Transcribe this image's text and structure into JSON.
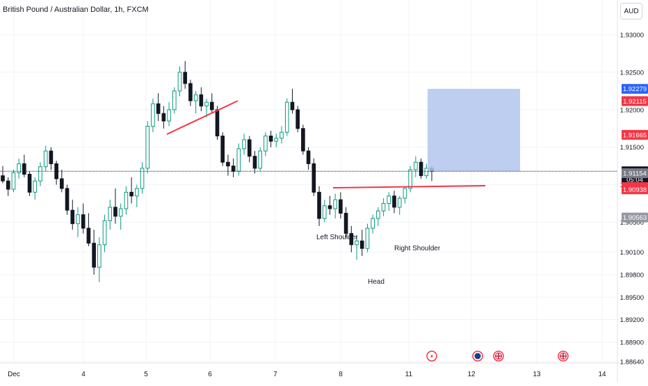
{
  "symbol": {
    "title": "British Pound / Australian Dollar, 1h, FXCM",
    "currency": "AUD"
  },
  "price_axis": {
    "ticks": [
      "1.93000",
      "1.92500",
      "1.92000",
      "1.91500",
      "1.91000",
      "1.90500",
      "1.90100",
      "1.89800",
      "1.89500",
      "1.89200",
      "1.88900",
      "1.88640"
    ],
    "tick_values": [
      1.93,
      1.925,
      1.92,
      1.915,
      1.91,
      1.905,
      1.901,
      1.898,
      1.895,
      1.892,
      1.889,
      1.8864
    ]
  },
  "price_labels": [
    {
      "text": "1.92279",
      "value": 1.92279,
      "color": "#2962ff"
    },
    {
      "text": "1.92115",
      "value": 1.92115,
      "color": "#f23645"
    },
    {
      "text": "1.91665",
      "value": 1.91665,
      "color": "#f23645"
    },
    {
      "text": "1.91180",
      "value": 1.9118,
      "color": "#131722",
      "sub": "05:04"
    },
    {
      "text": "1.91154",
      "value": 1.91154,
      "color": "#787b86"
    },
    {
      "text": "1.90969",
      "value": 1.90969,
      "color": "#f23645"
    },
    {
      "text": "1.90938",
      "value": 1.90938,
      "color": "#f23645"
    },
    {
      "text": "1.90563",
      "value": 1.90563,
      "color": "#9598a1"
    }
  ],
  "time_axis": {
    "labels": [
      "Dec",
      "4",
      "5",
      "6",
      "7",
      "8",
      "11",
      "12",
      "13",
      "14"
    ]
  },
  "annotations": {
    "left_shoulder": "Left Shoulder",
    "head": "Head",
    "right_shoulder": "Right Shoulder"
  },
  "event_icons": [
    "flash-event-icon",
    "australia-flag-event-icon",
    "uk-flag-event-icon",
    "uk-flag-event-icon"
  ],
  "colors": {
    "up": "#089981",
    "down": "#131722",
    "trendline": "#f23645",
    "target_zone": "#b2c5ee",
    "stop_zone": "#d1d4dc",
    "last_price_line": "#131722"
  },
  "chart_data": {
    "type": "candlestick",
    "title": "British Pound / Australian Dollar, 1h, FXCM",
    "ylim": [
      1.8864,
      1.933
    ],
    "xcategories": [
      "Dec",
      "4",
      "5",
      "6",
      "7",
      "8",
      "11",
      "12",
      "13",
      "14"
    ],
    "candles": [
      [
        1.9112,
        1.9125,
        1.9102,
        1.9105
      ],
      [
        1.9105,
        1.911,
        1.9085,
        1.9094
      ],
      [
        1.9094,
        1.912,
        1.909,
        1.9116
      ],
      [
        1.9116,
        1.9135,
        1.9108,
        1.9128
      ],
      [
        1.9128,
        1.914,
        1.911,
        1.9114
      ],
      [
        1.9114,
        1.9118,
        1.9085,
        1.909
      ],
      [
        1.909,
        1.911,
        1.908,
        1.9105
      ],
      [
        1.9105,
        1.913,
        1.9098,
        1.9124
      ],
      [
        1.9124,
        1.9152,
        1.9118,
        1.9145
      ],
      [
        1.9145,
        1.915,
        1.912,
        1.9128
      ],
      [
        1.9128,
        1.9132,
        1.91,
        1.9108
      ],
      [
        1.9108,
        1.912,
        1.909,
        1.9095
      ],
      [
        1.9095,
        1.91,
        1.906,
        1.9066
      ],
      [
        1.9066,
        1.908,
        1.904,
        1.9048
      ],
      [
        1.9048,
        1.907,
        1.903,
        1.906
      ],
      [
        1.906,
        1.9075,
        1.9035,
        1.9042
      ],
      [
        1.9042,
        1.9062,
        1.9018,
        1.9022
      ],
      [
        1.9022,
        1.904,
        1.898,
        1.899
      ],
      [
        1.899,
        1.903,
        1.897,
        1.902
      ],
      [
        1.902,
        1.906,
        1.901,
        1.9052
      ],
      [
        1.9052,
        1.908,
        1.904,
        1.907
      ],
      [
        1.907,
        1.9095,
        1.9048,
        1.9058
      ],
      [
        1.9058,
        1.9075,
        1.904,
        1.9068
      ],
      [
        1.9068,
        1.9098,
        1.906,
        1.909
      ],
      [
        1.909,
        1.911,
        1.9075,
        1.9085
      ],
      [
        1.9085,
        1.91,
        1.907,
        1.9095
      ],
      [
        1.9095,
        1.913,
        1.9088,
        1.9122
      ],
      [
        1.9122,
        1.9185,
        1.9115,
        1.9178
      ],
      [
        1.9178,
        1.9215,
        1.917,
        1.9208
      ],
      [
        1.9208,
        1.9222,
        1.9185,
        1.9195
      ],
      [
        1.9195,
        1.9205,
        1.9175,
        1.9185
      ],
      [
        1.9185,
        1.921,
        1.9178,
        1.92
      ],
      [
        1.92,
        1.923,
        1.9195,
        1.9225
      ],
      [
        1.9225,
        1.9258,
        1.9218,
        1.925
      ],
      [
        1.925,
        1.9265,
        1.9228,
        1.9235
      ],
      [
        1.9235,
        1.924,
        1.9205,
        1.9212
      ],
      [
        1.9212,
        1.9225,
        1.9195,
        1.922
      ],
      [
        1.922,
        1.923,
        1.9198,
        1.9205
      ],
      [
        1.9205,
        1.9215,
        1.919,
        1.921
      ],
      [
        1.921,
        1.9222,
        1.9195,
        1.92
      ],
      [
        1.92,
        1.9205,
        1.916,
        1.9165
      ],
      [
        1.9165,
        1.917,
        1.9125,
        1.913
      ],
      [
        1.913,
        1.914,
        1.9112,
        1.9125
      ],
      [
        1.9125,
        1.9135,
        1.911,
        1.9118
      ],
      [
        1.9118,
        1.9155,
        1.9112,
        1.9148
      ],
      [
        1.9148,
        1.9168,
        1.914,
        1.916
      ],
      [
        1.916,
        1.9165,
        1.913,
        1.9138
      ],
      [
        1.9138,
        1.9145,
        1.9115,
        1.9122
      ],
      [
        1.9122,
        1.915,
        1.9118,
        1.9145
      ],
      [
        1.9145,
        1.917,
        1.9138,
        1.9165
      ],
      [
        1.9165,
        1.9172,
        1.915,
        1.9158
      ],
      [
        1.9158,
        1.9168,
        1.915,
        1.9162
      ],
      [
        1.9162,
        1.9178,
        1.9155,
        1.917
      ],
      [
        1.917,
        1.9215,
        1.9165,
        1.921
      ],
      [
        1.921,
        1.9228,
        1.9195,
        1.92
      ],
      [
        1.92,
        1.9205,
        1.917,
        1.9175
      ],
      [
        1.9175,
        1.918,
        1.914,
        1.9145
      ],
      [
        1.9145,
        1.915,
        1.912,
        1.9128
      ],
      [
        1.9128,
        1.9135,
        1.9085,
        1.909
      ],
      [
        1.909,
        1.9098,
        1.9045,
        1.9055
      ],
      [
        1.9055,
        1.908,
        1.905,
        1.9072
      ],
      [
        1.9072,
        1.9085,
        1.906,
        1.9068
      ],
      [
        1.9068,
        1.9088,
        1.9055,
        1.908
      ],
      [
        1.908,
        1.909,
        1.9055,
        1.9062
      ],
      [
        1.9062,
        1.907,
        1.903,
        1.9035
      ],
      [
        1.9035,
        1.9045,
        1.901,
        1.902
      ],
      [
        1.902,
        1.9032,
        1.9,
        1.9025
      ],
      [
        1.9025,
        1.904,
        1.9005,
        1.9015
      ],
      [
        1.9015,
        1.9048,
        1.901,
        1.9042
      ],
      [
        1.9042,
        1.906,
        1.9035,
        1.9055
      ],
      [
        1.9055,
        1.907,
        1.9045,
        1.9065
      ],
      [
        1.9065,
        1.9082,
        1.9058,
        1.9075
      ],
      [
        1.9075,
        1.909,
        1.9065,
        1.9085
      ],
      [
        1.9085,
        1.9092,
        1.9062,
        1.907
      ],
      [
        1.907,
        1.9085,
        1.906,
        1.9082
      ],
      [
        1.9082,
        1.9098,
        1.9075,
        1.9095
      ],
      [
        1.9095,
        1.9125,
        1.909,
        1.912
      ],
      [
        1.912,
        1.9138,
        1.911,
        1.913
      ],
      [
        1.913,
        1.9135,
        1.9108,
        1.9112
      ],
      [
        1.9112,
        1.9128,
        1.9108,
        1.9122
      ],
      [
        1.9122,
        1.9125,
        1.9105,
        1.9118
      ]
    ],
    "target_zone": {
      "from": 1.9118,
      "to": 1.92279
    },
    "stop_zone": {
      "from": 1.90563,
      "to": 1.9118
    },
    "last_price": 1.9118,
    "pattern": "head and shoulders"
  }
}
